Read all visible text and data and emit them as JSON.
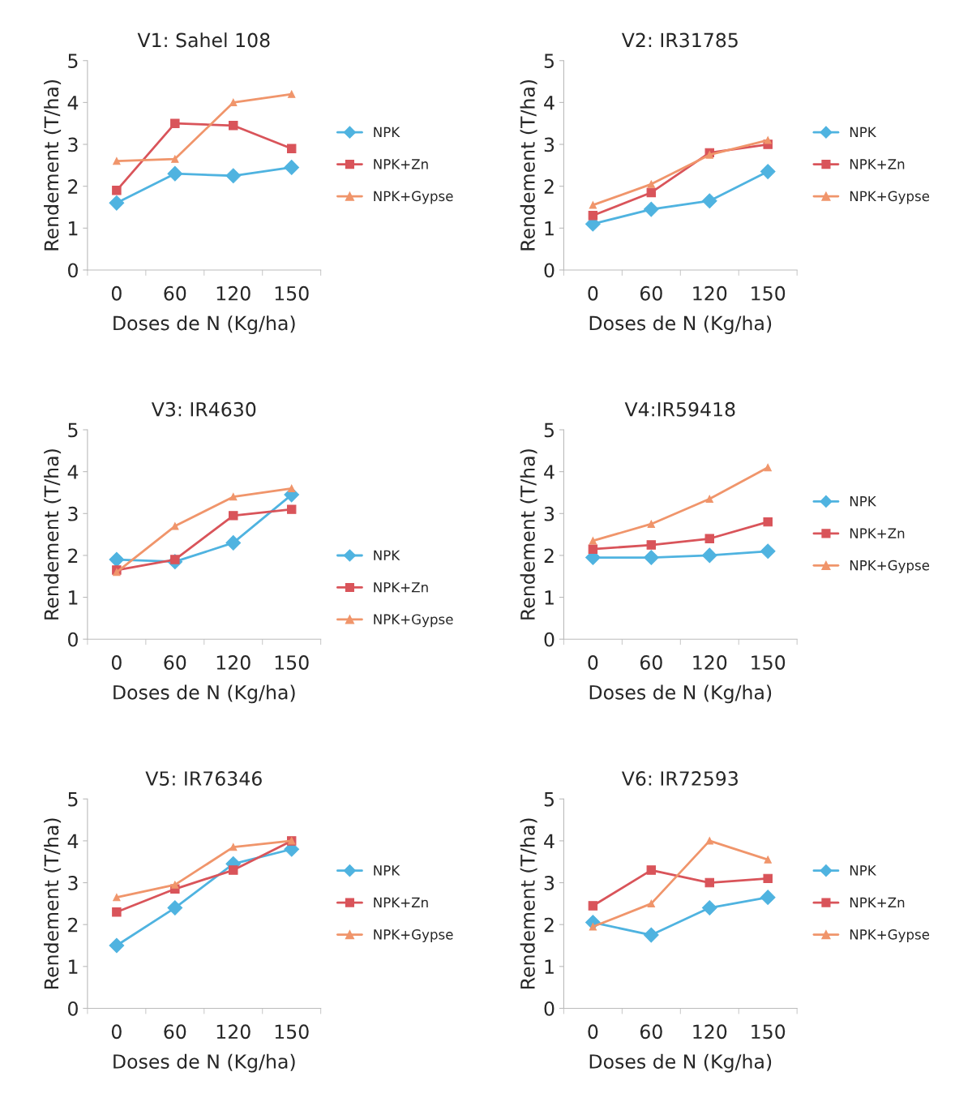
{
  "chart_data": [
    {
      "type": "line",
      "title": "V1: Sahel 108",
      "xlabel": "Doses de N (Kg/ha)",
      "ylabel": "Rendement (T/ha)",
      "categories": [
        "0",
        "60",
        "120",
        "150"
      ],
      "ylim": [
        0,
        5
      ],
      "yticks": [
        0,
        1,
        2,
        3,
        4,
        5
      ],
      "grid": false,
      "legend": "right",
      "series": [
        {
          "name": "NPK",
          "color": "#4fb3e0",
          "marker": "diamond",
          "values": [
            1.6,
            2.3,
            2.25,
            2.45
          ]
        },
        {
          "name": "NPK+Zn",
          "color": "#d9545a",
          "marker": "square",
          "values": [
            1.9,
            3.5,
            3.45,
            2.9
          ]
        },
        {
          "name": "NPK+Gypse",
          "color": "#f0956b",
          "marker": "triangle",
          "values": [
            2.6,
            2.65,
            4.0,
            4.2
          ]
        }
      ]
    },
    {
      "type": "line",
      "title": "V2: IR31785",
      "xlabel": "Doses de N (Kg/ha)",
      "ylabel": "Rendement (T/ha)",
      "categories": [
        "0",
        "60",
        "120",
        "150"
      ],
      "ylim": [
        0,
        5
      ],
      "yticks": [
        0,
        1,
        2,
        3,
        4,
        5
      ],
      "grid": false,
      "legend": "right",
      "series": [
        {
          "name": "NPK",
          "color": "#4fb3e0",
          "marker": "diamond",
          "values": [
            1.1,
            1.45,
            1.65,
            2.35
          ]
        },
        {
          "name": "NPK+Zn",
          "color": "#d9545a",
          "marker": "square",
          "values": [
            1.3,
            1.85,
            2.8,
            3.0
          ]
        },
        {
          "name": "NPK+Gypse",
          "color": "#f0956b",
          "marker": "triangle",
          "values": [
            1.55,
            2.05,
            2.75,
            3.1
          ]
        }
      ]
    },
    {
      "type": "line",
      "title": "V3: IR4630",
      "xlabel": "Doses de N (Kg/ha)",
      "ylabel": "Rendement (T/ha)",
      "categories": [
        "0",
        "60",
        "120",
        "150"
      ],
      "ylim": [
        0,
        5
      ],
      "yticks": [
        0,
        1,
        2,
        3,
        4,
        5
      ],
      "grid": false,
      "legend": "bottom right",
      "series": [
        {
          "name": "NPK",
          "color": "#4fb3e0",
          "marker": "diamond",
          "values": [
            1.9,
            1.85,
            2.3,
            3.45
          ]
        },
        {
          "name": "NPK+Zn",
          "color": "#d9545a",
          "marker": "square",
          "values": [
            1.65,
            1.9,
            2.95,
            3.1
          ]
        },
        {
          "name": "NPK+Gypse",
          "color": "#f0956b",
          "marker": "triangle",
          "values": [
            1.6,
            2.7,
            3.4,
            3.6
          ]
        }
      ]
    },
    {
      "type": "line",
      "title": "V4:IR59418",
      "xlabel": "Doses de N (Kg/ha)",
      "ylabel": "Rendement (T/ha)",
      "categories": [
        "0",
        "60",
        "120",
        "150"
      ],
      "ylim": [
        0,
        5
      ],
      "yticks": [
        0,
        1,
        2,
        3,
        4,
        5
      ],
      "grid": false,
      "legend": "right",
      "series": [
        {
          "name": "NPK",
          "color": "#4fb3e0",
          "marker": "diamond",
          "values": [
            1.95,
            1.95,
            2.0,
            2.1
          ]
        },
        {
          "name": "NPK+Zn",
          "color": "#d9545a",
          "marker": "square",
          "values": [
            2.15,
            2.25,
            2.4,
            2.8
          ]
        },
        {
          "name": "NPK+Gypse",
          "color": "#f0956b",
          "marker": "triangle",
          "values": [
            2.35,
            2.75,
            3.35,
            4.1
          ]
        }
      ]
    },
    {
      "type": "line",
      "title": "V5: IR76346",
      "xlabel": "Doses de N (Kg/ha)",
      "ylabel": "Rendement (T/ha)",
      "categories": [
        "0",
        "60",
        "120",
        "150"
      ],
      "ylim": [
        0,
        5
      ],
      "yticks": [
        0,
        1,
        2,
        3,
        4,
        5
      ],
      "grid": false,
      "legend": "right",
      "series": [
        {
          "name": "NPK",
          "color": "#4fb3e0",
          "marker": "diamond",
          "values": [
            1.5,
            2.4,
            3.45,
            3.8
          ]
        },
        {
          "name": "NPK+Zn",
          "color": "#d9545a",
          "marker": "square",
          "values": [
            2.3,
            2.85,
            3.3,
            4.0
          ]
        },
        {
          "name": "NPK+Gypse",
          "color": "#f0956b",
          "marker": "triangle",
          "values": [
            2.65,
            2.95,
            3.85,
            4.0
          ]
        }
      ]
    },
    {
      "type": "line",
      "title": "V6: IR72593",
      "xlabel": "Doses de N (Kg/ha)",
      "ylabel": "Rendement (T/ha)",
      "categories": [
        "0",
        "60",
        "120",
        "150"
      ],
      "ylim": [
        0,
        5
      ],
      "yticks": [
        0,
        1,
        2,
        3,
        4,
        5
      ],
      "grid": false,
      "legend": "right",
      "series": [
        {
          "name": "NPK",
          "color": "#4fb3e0",
          "marker": "diamond",
          "values": [
            2.05,
            1.75,
            2.4,
            2.65
          ]
        },
        {
          "name": "NPK+Zn",
          "color": "#d9545a",
          "marker": "square",
          "values": [
            2.45,
            3.3,
            3.0,
            3.1
          ]
        },
        {
          "name": "NPK+Gypse",
          "color": "#f0956b",
          "marker": "triangle",
          "values": [
            1.95,
            2.5,
            4.0,
            3.55
          ]
        }
      ]
    }
  ]
}
